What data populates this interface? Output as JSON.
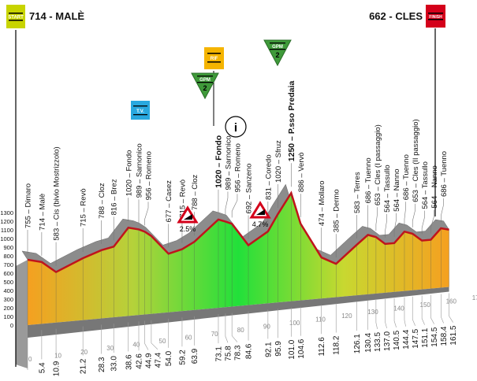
{
  "header": {
    "start": {
      "label": "714 - MALÈ",
      "badge": "START",
      "color": "#c8d400"
    },
    "finish": {
      "label": "662 - CLES",
      "badge": "FINISH",
      "color": "#d4001a"
    }
  },
  "markers": {
    "gpm1": {
      "badge": "GPM",
      "category": "2",
      "color": "#3f9a3a"
    },
    "gpm2": {
      "badge": "GPM",
      "category": "2",
      "color": "#3f9a3a"
    },
    "sprint": {
      "badge": "RIF",
      "color": "#f5b400"
    },
    "tv": {
      "badge": "T.V.",
      "color": "#29a8df"
    },
    "info": {
      "glyph": "i"
    },
    "grade1": {
      "label": "2.5%"
    },
    "grade2": {
      "label": "4.7%"
    }
  },
  "chart_data": {
    "type": "area",
    "xlabel": "",
    "ylabel": "",
    "xlim": [
      0,
      170
    ],
    "ylim": [
      0,
      1300
    ],
    "x_ticks": [
      0,
      10,
      20,
      30,
      40,
      50,
      60,
      70,
      80,
      90,
      100,
      110,
      120,
      130,
      140,
      150,
      160,
      170
    ],
    "y_ticks": [
      0,
      100,
      200,
      300,
      400,
      500,
      600,
      700,
      800,
      900,
      1000,
      1100,
      1200,
      1300
    ],
    "colors": {
      "low": "#f5a020",
      "high": "#22e03a",
      "line": "#c0141c",
      "relief": "#8c8c8c"
    },
    "points": [
      {
        "km": "0",
        "ele": 755,
        "place": "Dimaro"
      },
      {
        "km": "5.4",
        "ele": 714,
        "place": "Malè"
      },
      {
        "km": "10.9",
        "ele": 583,
        "place": "Cis (bivio Mostrizzolo)"
      },
      {
        "km": "21.2",
        "ele": 715,
        "place": "Revò"
      },
      {
        "km": "28.3",
        "ele": 788,
        "place": "Cloz"
      },
      {
        "km": "33.0",
        "ele": 816,
        "place": "Brez"
      },
      {
        "km": "38.6",
        "ele": 1020,
        "place": "Fondo"
      },
      {
        "km": "42.6",
        "ele": 989,
        "place": "Sarnonico"
      },
      {
        "km": "44.9",
        "ele": 956,
        "place": "Romeno"
      },
      {
        "km": "47.4",
        "ele": 900,
        "place": ""
      },
      {
        "km": "54.0",
        "ele": 677,
        "place": "Casez"
      },
      {
        "km": "59.2",
        "ele": 715,
        "place": "Revò"
      },
      {
        "km": "63.9",
        "ele": 788,
        "place": "Cloz"
      },
      {
        "km": "73.1",
        "ele": 1020,
        "place": "Fondo",
        "bold": true
      },
      {
        "km": "75.8",
        "ele": 989,
        "place": "Sarnonico"
      },
      {
        "km": "78.3",
        "ele": 956,
        "place": "Romeno"
      },
      {
        "km": "84.6",
        "ele": 692,
        "place": "Sanzeno"
      },
      {
        "km": "92.1",
        "ele": 831,
        "place": "Coredo"
      },
      {
        "km": "95.9",
        "ele": 1020,
        "place": "Sfruz"
      },
      {
        "km": "101.0",
        "ele": 1250,
        "place": "P.sso Predaia",
        "bold": true
      },
      {
        "km": "104.6",
        "ele": 886,
        "place": "Vervò"
      },
      {
        "km": "112.6",
        "ele": 474,
        "place": "Mollaro"
      },
      {
        "km": "118.2",
        "ele": 385,
        "place": "Dermo"
      },
      {
        "km": "126.1",
        "ele": 583,
        "place": "Terres"
      },
      {
        "km": "130.4",
        "ele": 686,
        "place": "Tuenno"
      },
      {
        "km": "133.5",
        "ele": 653,
        "place": "Cles (I passaggio)"
      },
      {
        "km": "137.0",
        "ele": 564,
        "place": "Tassullo"
      },
      {
        "km": "140.5",
        "ele": 564,
        "place": "Nanno"
      },
      {
        "km": "144.4",
        "ele": 686,
        "place": "Tuenno"
      },
      {
        "km": "147.5",
        "ele": 653,
        "place": "Cles (II passaggio)"
      },
      {
        "km": "151.1",
        "ele": 564,
        "place": "Tassullo"
      },
      {
        "km": "154.5",
        "ele": 564,
        "place": "Nanno"
      },
      {
        "km": "158.4",
        "ele": 686,
        "place": "Tuenno"
      },
      {
        "km": "161.5",
        "ele": 662,
        "place": ""
      }
    ]
  }
}
